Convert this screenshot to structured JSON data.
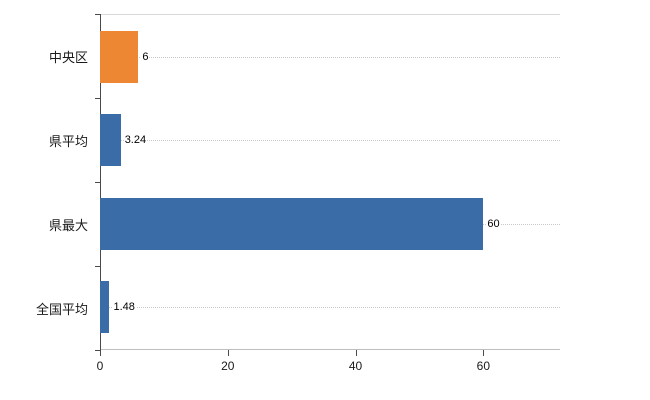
{
  "chart_data": {
    "type": "bar",
    "orientation": "horizontal",
    "categories": [
      "中央区",
      "県平均",
      "県最大",
      "全国平均"
    ],
    "values": [
      6,
      3.24,
      60,
      1.48
    ],
    "value_labels": [
      "6",
      "3.24",
      "60",
      "1.48"
    ],
    "bar_colors": [
      "#ED8733",
      "#3A6CA8",
      "#3A6CA8",
      "#3A6CA8"
    ],
    "xlim": [
      0,
      72
    ],
    "x_ticks": [
      0,
      20,
      40,
      60
    ],
    "x_tick_labels": [
      "0",
      "20",
      "40",
      "60"
    ],
    "title": "",
    "xlabel": "",
    "ylabel": "",
    "legend": "none",
    "grid": "dotted horizontal line at each category center"
  },
  "colors": {
    "bar_blue": "#3A6CA8",
    "bar_orange": "#ED8733",
    "axis_line": "#4a4a4a",
    "gridline": "#c8c8c8",
    "background": "#ffffff"
  }
}
